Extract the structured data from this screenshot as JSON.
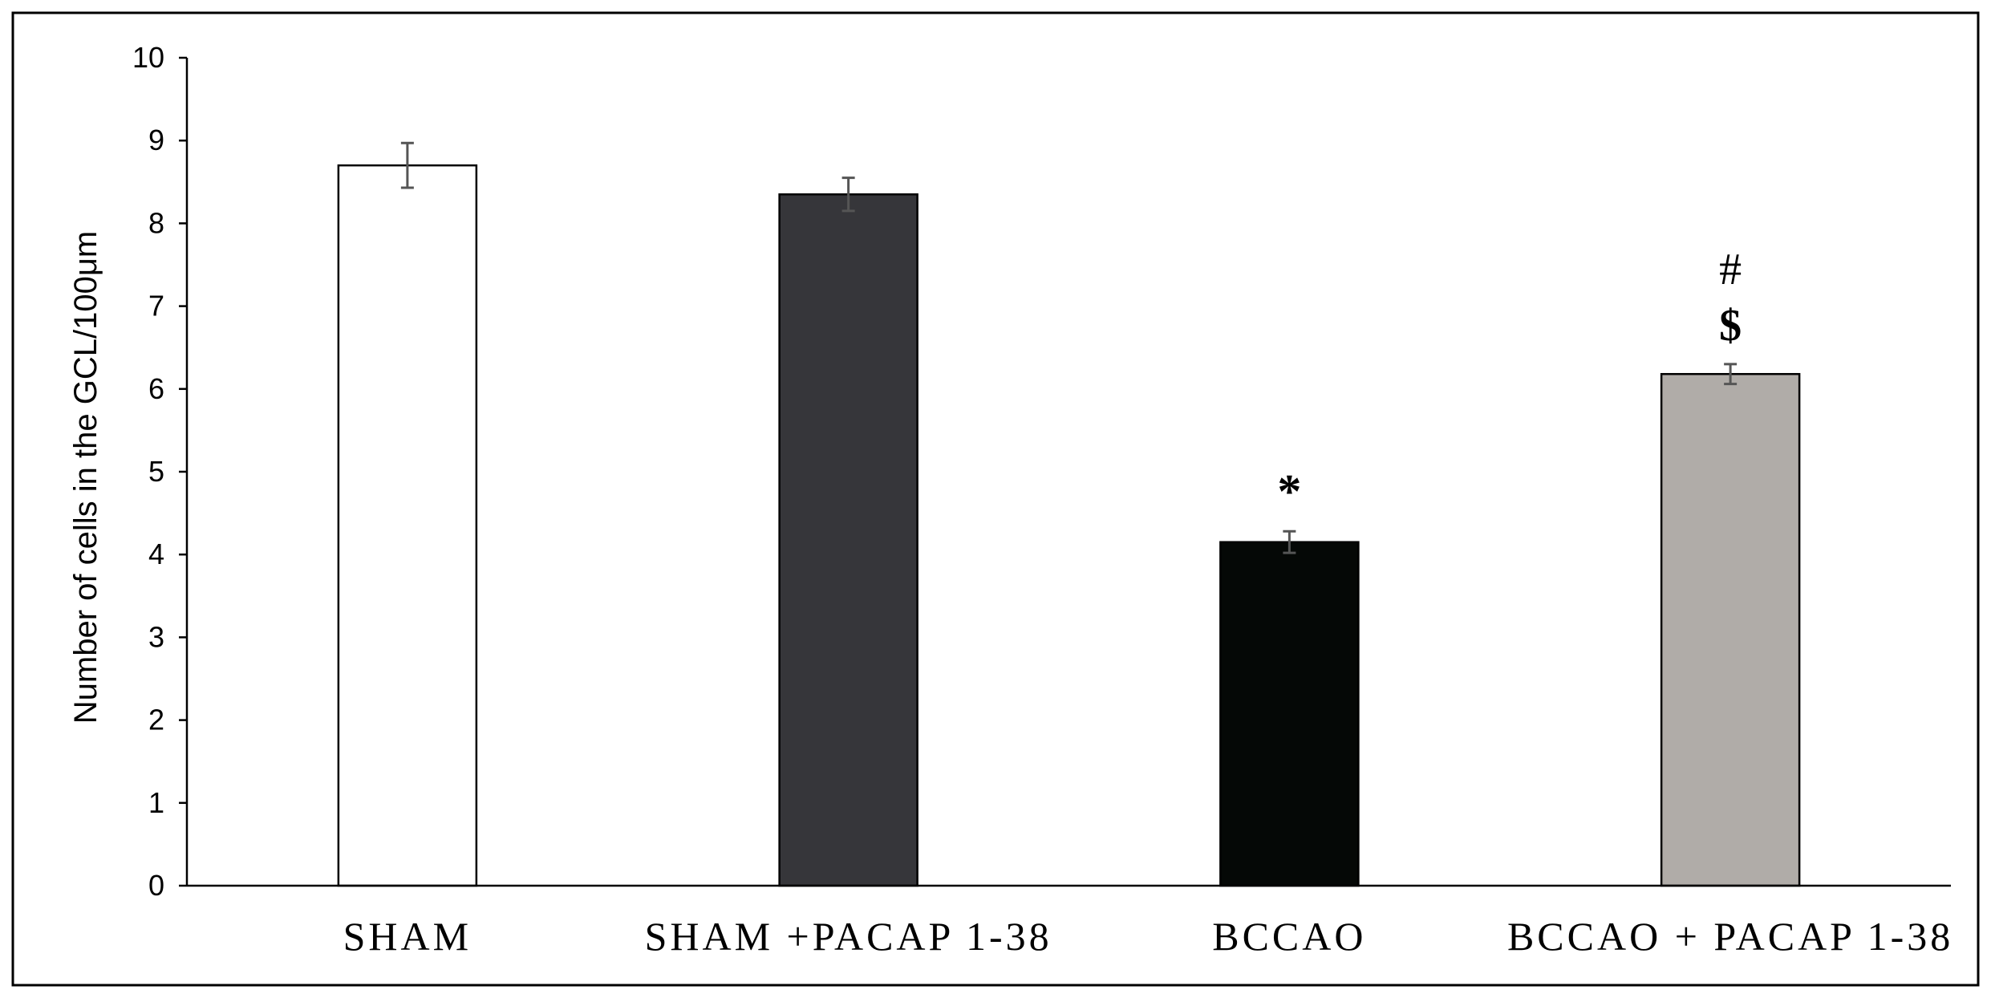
{
  "chart_data": {
    "type": "bar",
    "categories": [
      "SHAM",
      "SHAM +PACAP 1-38",
      "BCCAO",
      "BCCAO + PACAP 1-38"
    ],
    "values": [
      8.7,
      8.35,
      4.15,
      6.18
    ],
    "errors": [
      0.27,
      0.2,
      0.13,
      0.12
    ],
    "bar_colors": [
      "#ffffff",
      "#36363a",
      "#050806",
      "#b0aca8"
    ],
    "annotations": [
      {
        "category_index": 2,
        "symbols": [
          "*"
        ]
      },
      {
        "category_index": 3,
        "symbols": [
          "#",
          "$"
        ]
      }
    ],
    "ylabel": "Number of cells in the GCL/100μm",
    "xlabel": "",
    "title": "",
    "ylim": [
      0,
      10
    ],
    "yticks": [
      "0",
      "1",
      "2",
      "3",
      "4",
      "5",
      "6",
      "7",
      "8",
      "9",
      "10"
    ],
    "grid": false,
    "legend": "none"
  }
}
